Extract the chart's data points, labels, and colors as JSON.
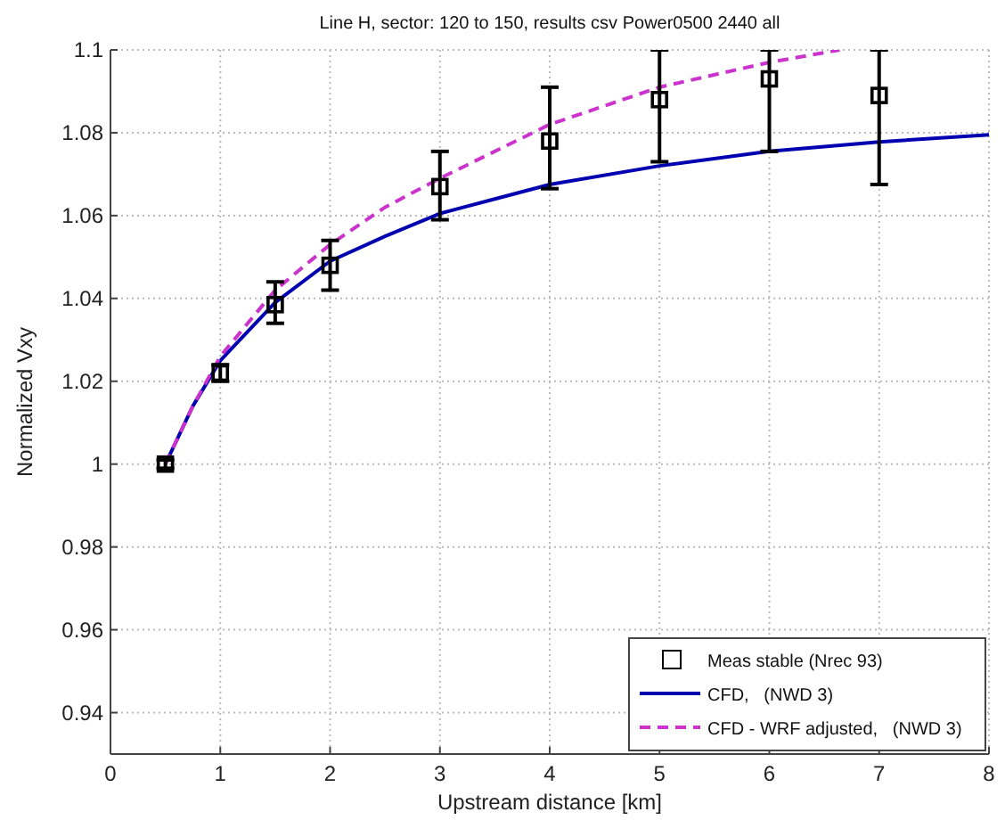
{
  "chart_data": {
    "type": "line",
    "title": "Line H, sector: 120 to 150, results csv Power0500 2440 all",
    "xlabel": "Upstream distance [km]",
    "ylabel": "Normalized Vxy",
    "xlim": [
      0,
      8
    ],
    "xticks": [
      0,
      1,
      2,
      3,
      4,
      5,
      6,
      7,
      8
    ],
    "ylim": [
      0.93,
      1.1
    ],
    "yticks": [
      0.94,
      0.96,
      0.98,
      1,
      1.02,
      1.04,
      1.06,
      1.08,
      1.1
    ],
    "grid": true,
    "legend": "bottom right",
    "series": [
      {
        "name": "Meas stable (Nrec 93)",
        "type": "scatter",
        "color": "#000000",
        "marker": "square",
        "x": [
          0.5,
          1,
          1.5,
          2,
          3,
          4,
          5,
          6,
          7
        ],
        "values": [
          1.0,
          1.022,
          1.0385,
          1.048,
          1.067,
          1.078,
          1.088,
          1.093,
          1.089
        ],
        "errors": [
          0.001,
          0.002,
          [
            1.034,
            1.044
          ],
          [
            1.042,
            1.054
          ],
          [
            1.059,
            1.0755
          ],
          [
            1.0665,
            1.091
          ],
          [
            1.073,
            1.1
          ],
          [
            1.0755,
            1.1
          ],
          [
            1.0675,
            1.1
          ]
        ]
      },
      {
        "name": "CFD,   (NWD 3)",
        "color": "#0000b0",
        "line_style": "solid",
        "x": [
          0.5,
          0.75,
          1,
          1.5,
          2,
          2.5,
          3,
          3.5,
          4,
          5,
          6,
          7,
          8
        ],
        "values": [
          1.0,
          1.014,
          1.025,
          1.039,
          1.049,
          1.055,
          1.0605,
          1.064,
          1.0675,
          1.072,
          1.0755,
          1.0778,
          1.0795
        ]
      },
      {
        "name": "CFD - WRF adjusted,   (NWD 3)",
        "color": "#cc33cc",
        "line_style": "dashed",
        "x": [
          0.5,
          0.75,
          1,
          1.5,
          2,
          2.5,
          3,
          4,
          5,
          6,
          6.64
        ],
        "values": [
          1.0,
          1.014,
          1.026,
          1.042,
          1.053,
          1.062,
          1.069,
          1.082,
          1.091,
          1.097,
          1.1
        ]
      }
    ]
  }
}
